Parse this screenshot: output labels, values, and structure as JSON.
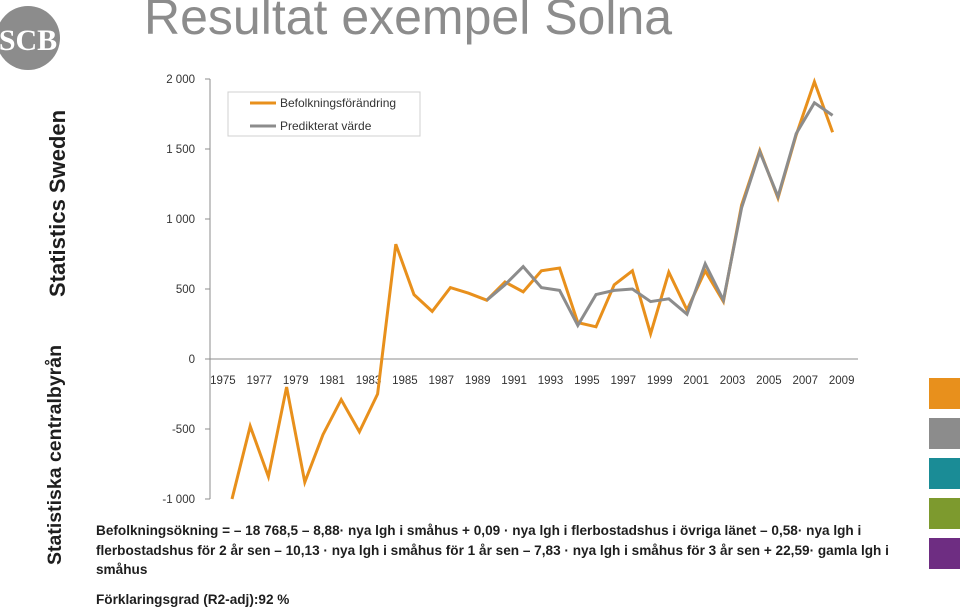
{
  "title": "Resultat exempel Solna",
  "side_text": {
    "line1": "Statistics Sweden",
    "line2": "Statistiska centralbyrån"
  },
  "logo": {
    "text": "SCB",
    "color": "#8c8c8c"
  },
  "formula": "Befolkningsökning = – 18 768,5 – 8,88· nya lgh i småhus + 0,09 · nya lgh i flerbostadshus i övriga länet – 0,58· nya lgh i flerbostadshus för 2 år sen – 10,13 · nya lgh i småhus för 1 år sen – 7,83 · nya lgh i småhus för 3 år sen + 22,59· gamla lgh i småhus",
  "r2_text": "Förklaringsgrad (R2-adj):92 %",
  "swatches": [
    "#e8901c",
    "#8c8c8c",
    "#1a8c96",
    "#7d9a2e",
    "#6e2d82"
  ],
  "chart_data": {
    "type": "line",
    "x": [
      1975,
      1976,
      1977,
      1978,
      1979,
      1980,
      1981,
      1982,
      1983,
      1984,
      1985,
      1986,
      1987,
      1988,
      1989,
      1990,
      1991,
      1992,
      1993,
      1994,
      1995,
      1996,
      1997,
      1998,
      1999,
      2000,
      2001,
      2002,
      2003,
      2004,
      2005,
      2006,
      2007,
      2008,
      2009,
      2010
    ],
    "x_tick_labels": [
      "1975",
      "1977",
      "1979",
      "1981",
      "1983",
      "1985",
      "1987",
      "1989",
      "1991",
      "1993",
      "1995",
      "1997",
      "1999",
      "2001",
      "2003",
      "2005",
      "2007",
      "2009"
    ],
    "y_ticks": [
      2000,
      1500,
      1000,
      500,
      0,
      -500,
      -1000
    ],
    "y_tick_labels": [
      "2 000",
      "1 500",
      "1 000",
      "500",
      "0",
      "-500",
      "-1 000"
    ],
    "ylim": [
      -1000,
      2000
    ],
    "series": [
      {
        "name": "Befolkningsförändring",
        "color": "#e8901c",
        "values": [
          -1000,
          -480,
          -840,
          -200,
          -880,
          -540,
          -290,
          -520,
          -250,
          820,
          460,
          340,
          510,
          470,
          420,
          550,
          480,
          630,
          650,
          260,
          230,
          530,
          630,
          180,
          620,
          350,
          630,
          410,
          1100,
          1490,
          1150,
          1600,
          1980,
          1620,
          null,
          null
        ]
      },
      {
        "name": "Predikterat värde",
        "color": "#8c8c8c",
        "values": [
          null,
          null,
          null,
          null,
          null,
          null,
          null,
          null,
          null,
          null,
          null,
          null,
          null,
          null,
          420,
          530,
          660,
          510,
          490,
          240,
          460,
          490,
          500,
          410,
          430,
          320,
          680,
          420,
          1080,
          1480,
          1160,
          1610,
          1830,
          1740,
          null,
          null
        ]
      }
    ],
    "legend_position": "top-left",
    "grid": false
  }
}
